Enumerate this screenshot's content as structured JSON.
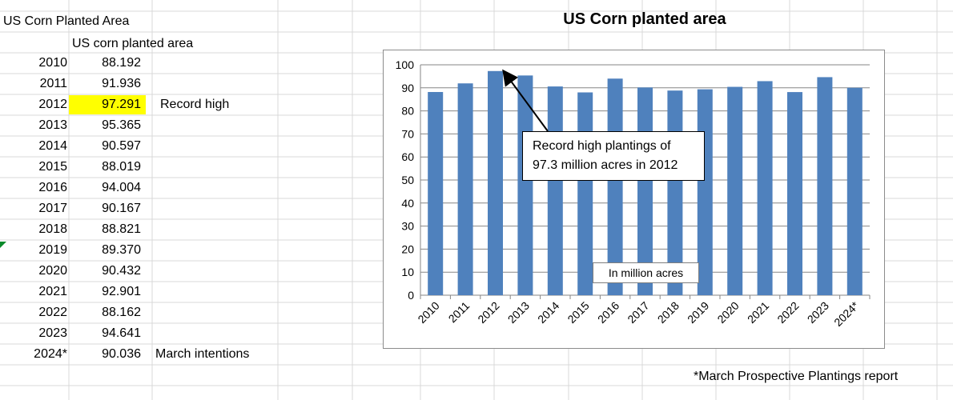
{
  "sheet": {
    "title": "US Corn Planted Area",
    "column_header": "US corn planted area",
    "rows": [
      {
        "year": "2010",
        "value": "88.192",
        "note": ""
      },
      {
        "year": "2011",
        "value": "91.936",
        "note": ""
      },
      {
        "year": "2012",
        "value": "97.291",
        "note": "Record high",
        "highlight": true
      },
      {
        "year": "2013",
        "value": "95.365",
        "note": ""
      },
      {
        "year": "2014",
        "value": "90.597",
        "note": ""
      },
      {
        "year": "2015",
        "value": "88.019",
        "note": ""
      },
      {
        "year": "2016",
        "value": "94.004",
        "note": ""
      },
      {
        "year": "2017",
        "value": "90.167",
        "note": ""
      },
      {
        "year": "2018",
        "value": "88.821",
        "note": ""
      },
      {
        "year": "2019",
        "value": "89.370",
        "note": ""
      },
      {
        "year": "2020",
        "value": "90.432",
        "note": ""
      },
      {
        "year": "2021",
        "value": "92.901",
        "note": ""
      },
      {
        "year": "2022",
        "value": "88.162",
        "note": ""
      },
      {
        "year": "2023",
        "value": "94.641",
        "note": ""
      },
      {
        "year": "2024*",
        "value": "90.036",
        "note": "March intentions"
      }
    ],
    "highlight_color": "#ffff00",
    "footnote": "*March Prospective Plantings report"
  },
  "chart_data": {
    "type": "bar",
    "title": "US Corn planted area",
    "categories": [
      "2010",
      "2011",
      "2012",
      "2013",
      "2014",
      "2015",
      "2016",
      "2017",
      "2018",
      "2019",
      "2020",
      "2021",
      "2022",
      "2023",
      "2024*"
    ],
    "values": [
      88.192,
      91.936,
      97.291,
      95.365,
      90.597,
      88.019,
      94.004,
      90.167,
      88.821,
      89.37,
      90.432,
      92.901,
      88.162,
      94.641,
      90.036
    ],
    "ylim": [
      0,
      100
    ],
    "yticks": [
      0,
      10,
      20,
      30,
      40,
      50,
      60,
      70,
      80,
      90,
      100
    ],
    "grid": true,
    "bar_color": "#4f81bd",
    "annotation": {
      "line1": "Record high plantings of",
      "line2": "97.3 million acres in 2012",
      "points_to": "2012"
    },
    "unit_label": "In million acres"
  }
}
